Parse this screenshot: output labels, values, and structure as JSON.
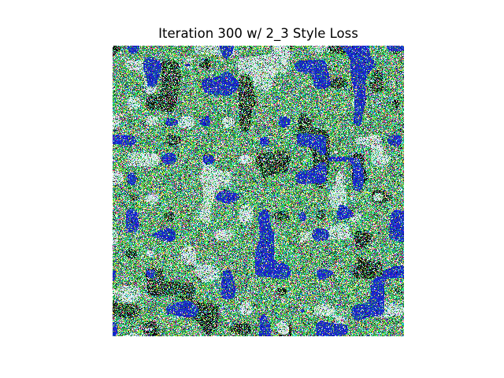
{
  "title": "Iteration 300 w/ 2_3 Style Loss",
  "image": {
    "description_type": "style-transfer noise texture",
    "dominant_colors": [
      "#1e9e3c",
      "#3cc85a",
      "#e6e6f0",
      "#0a14b4",
      "#dc1e5a",
      "#f0e632",
      "#1ec8dc",
      "#0a0a0a"
    ]
  }
}
